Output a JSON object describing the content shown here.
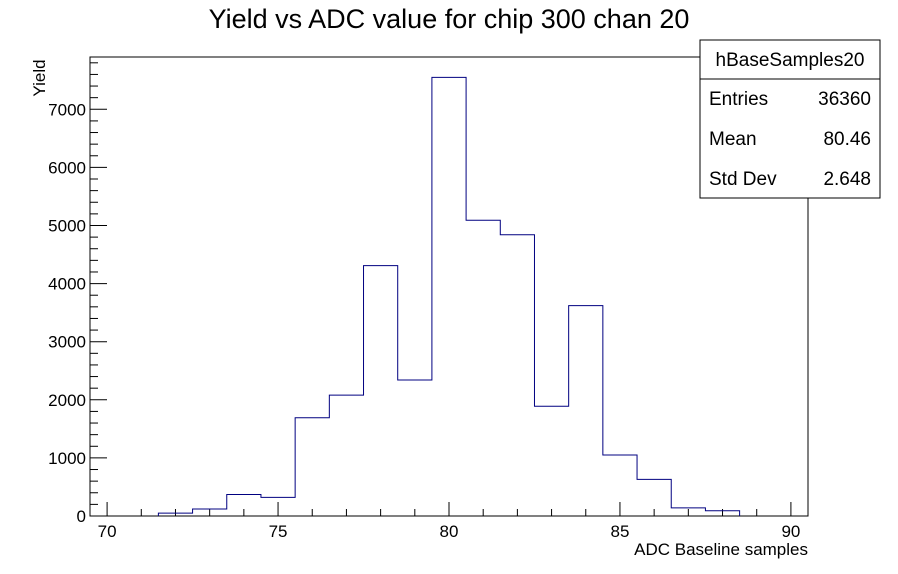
{
  "chart_data": {
    "type": "bar",
    "title": "Yield vs ADC value for chip 300 chan 20",
    "xlabel": "ADC Baseline samples",
    "ylabel": "Yield",
    "xlim": [
      69.5,
      90.5
    ],
    "ylim": [
      0,
      7900
    ],
    "xticks": [
      70,
      75,
      80,
      85,
      90
    ],
    "yticks": [
      0,
      1000,
      2000,
      3000,
      4000,
      5000,
      6000,
      7000
    ],
    "bin_width": 1,
    "bins": [
      {
        "low": 71.5,
        "high": 72.5,
        "value": 50
      },
      {
        "low": 72.5,
        "high": 73.5,
        "value": 120
      },
      {
        "low": 73.5,
        "high": 74.5,
        "value": 370
      },
      {
        "low": 74.5,
        "high": 75.5,
        "value": 320
      },
      {
        "low": 75.5,
        "high": 76.5,
        "value": 1690
      },
      {
        "low": 76.5,
        "high": 77.5,
        "value": 2080
      },
      {
        "low": 77.5,
        "high": 78.5,
        "value": 4310
      },
      {
        "low": 78.5,
        "high": 79.5,
        "value": 2340
      },
      {
        "low": 79.5,
        "high": 80.5,
        "value": 7550
      },
      {
        "low": 80.5,
        "high": 81.5,
        "value": 5090
      },
      {
        "low": 81.5,
        "high": 82.5,
        "value": 4840
      },
      {
        "low": 82.5,
        "high": 83.5,
        "value": 1890
      },
      {
        "low": 83.5,
        "high": 84.5,
        "value": 3620
      },
      {
        "low": 84.5,
        "high": 85.5,
        "value": 1050
      },
      {
        "low": 85.5,
        "high": 86.5,
        "value": 630
      },
      {
        "low": 86.5,
        "high": 87.5,
        "value": 140
      },
      {
        "low": 87.5,
        "high": 88.5,
        "value": 90
      }
    ],
    "stats_box": {
      "name": "hBaseSamples20",
      "rows": [
        {
          "label": "Entries",
          "value": "36360"
        },
        {
          "label": "Mean",
          "value": "80.46"
        },
        {
          "label": "Std Dev",
          "value": "2.648"
        }
      ]
    },
    "line_color": "#000080",
    "grid": false,
    "legend": "top-right"
  }
}
